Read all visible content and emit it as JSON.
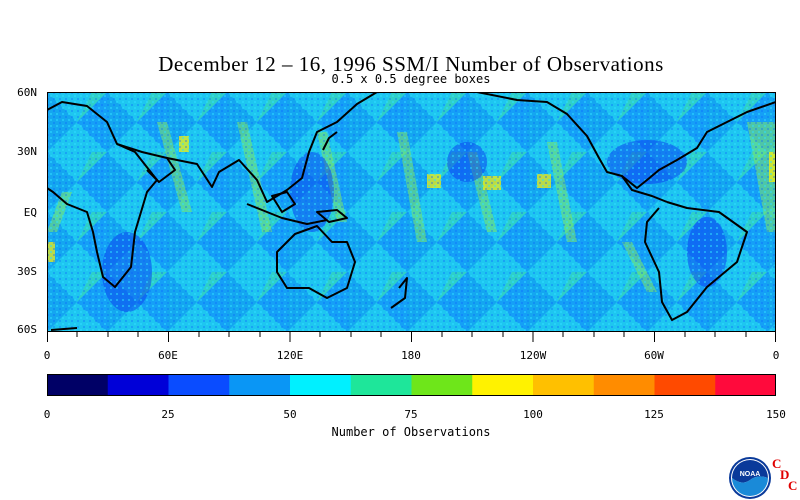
{
  "title": "December 12 – 16, 1996 SSM/I Number of Observations",
  "subtitle": "0.5 x 0.5 degree boxes",
  "lat_labels": [
    "60N",
    "30N",
    "EQ",
    "30S",
    "60S"
  ],
  "lon_labels": [
    "0",
    "60E",
    "120E",
    "180",
    "120W",
    "60W",
    "0"
  ],
  "colorbar": {
    "title": "Number of Observations",
    "tick_labels": [
      "0",
      "25",
      "50",
      "75",
      "100",
      "125",
      "150"
    ],
    "colors": [
      "#000066",
      "#0000d8",
      "#0a4cff",
      "#0a96f5",
      "#00f0ff",
      "#1ee69a",
      "#6ee61a",
      "#fff200",
      "#ffc000",
      "#ff8c00",
      "#ff4a00",
      "#ff0a3c"
    ]
  },
  "palette": {
    "ocean_base": "#1ec6f0",
    "ocean_low": "#0a5aff",
    "ocean_high": "#7ee666",
    "coastline": "#000000"
  },
  "logo": {
    "org_text": "NOAA",
    "cdc_letters": [
      "C",
      "D",
      "C"
    ],
    "cdc_color": "#e00000"
  }
}
